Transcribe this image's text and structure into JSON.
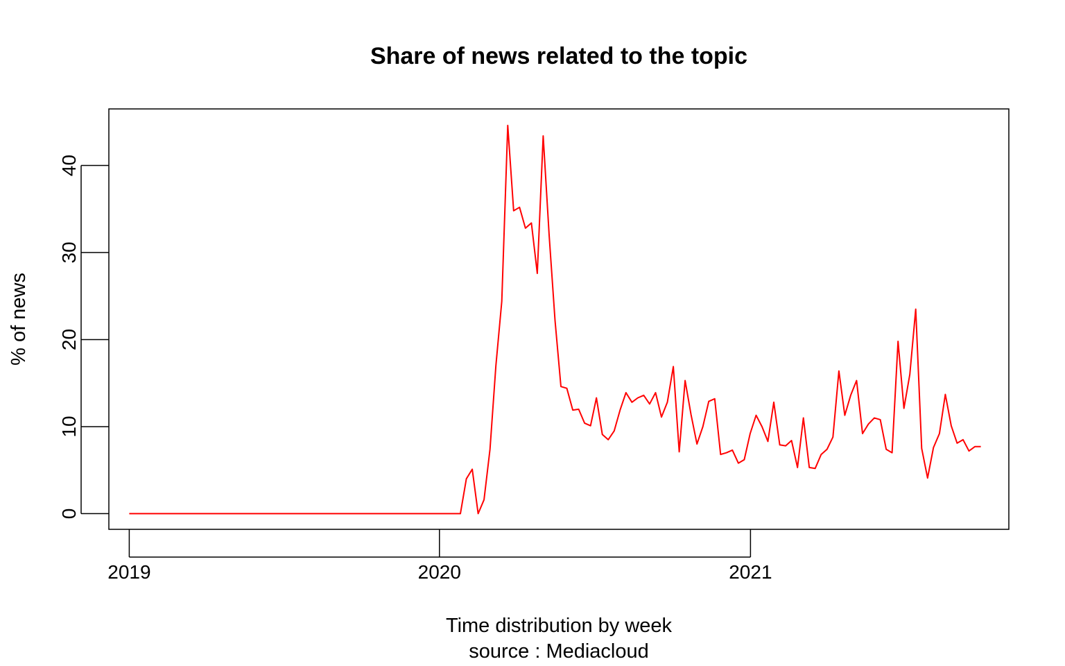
{
  "chart_data": {
    "type": "line",
    "title": "Share of news related to the topic",
    "xlabel": "Time distribution by week",
    "xlabel2": "source : Mediacloud",
    "ylabel": "% of news",
    "x_start": "2019-01-01",
    "x_end": "2021-09-29",
    "xlim": [
      "2018-12-08",
      "2021-11-01"
    ],
    "ylim": [
      -1.8,
      46.5
    ],
    "x_ticks": [
      "2019",
      "2020",
      "2021"
    ],
    "x_tick_dates": [
      "2019-01-01",
      "2020-01-01",
      "2021-01-01"
    ],
    "y_ticks": [
      0,
      10,
      20,
      30,
      40
    ],
    "grid": false,
    "legend": "none",
    "series": [
      {
        "color": "#ff0000",
        "values": [
          0,
          0,
          0,
          0,
          0,
          0,
          0,
          0,
          0,
          0,
          0,
          0,
          0,
          0,
          0,
          0,
          0,
          0,
          0,
          0,
          0,
          0,
          0,
          0,
          0,
          0,
          0,
          0,
          0,
          0,
          0,
          0,
          0,
          0,
          0,
          0,
          0,
          0,
          0,
          0,
          0,
          0,
          0,
          0,
          0,
          0,
          0,
          0,
          0,
          0,
          0,
          0,
          0,
          0,
          0,
          0,
          0,
          4.0,
          5.1,
          0,
          1.6,
          7.4,
          17,
          24.4,
          44.6,
          34.8,
          35.2,
          32.8,
          33.4,
          27.6,
          43.4,
          32,
          22.2,
          14.6,
          14.4,
          11.9,
          12.0,
          10.4,
          10.1,
          13.3,
          9.1,
          8.5,
          9.5,
          11.9,
          13.9,
          12.8,
          13.3,
          13.6,
          12.6,
          13.9,
          11.1,
          12.8,
          16.9,
          7.1,
          15.3,
          11.4,
          8.0,
          10.0,
          12.9,
          13.2,
          6.8,
          7.0,
          7.3,
          5.8,
          6.2,
          9.2,
          11.3,
          10.0,
          8.3,
          12.8,
          7.9,
          7.8,
          8.4,
          5.3,
          11.0,
          5.3,
          5.2,
          6.8,
          7.4,
          8.8,
          16.4,
          11.3,
          13.6,
          15.3,
          9.2,
          10.3,
          11.0,
          10.8,
          7.4,
          7.0,
          19.8,
          12.1,
          16.0,
          23.5,
          7.5,
          4.1,
          7.6,
          9.2,
          13.7,
          10.1,
          8.1,
          8.5,
          7.2,
          7.7,
          7.7
        ]
      }
    ]
  }
}
